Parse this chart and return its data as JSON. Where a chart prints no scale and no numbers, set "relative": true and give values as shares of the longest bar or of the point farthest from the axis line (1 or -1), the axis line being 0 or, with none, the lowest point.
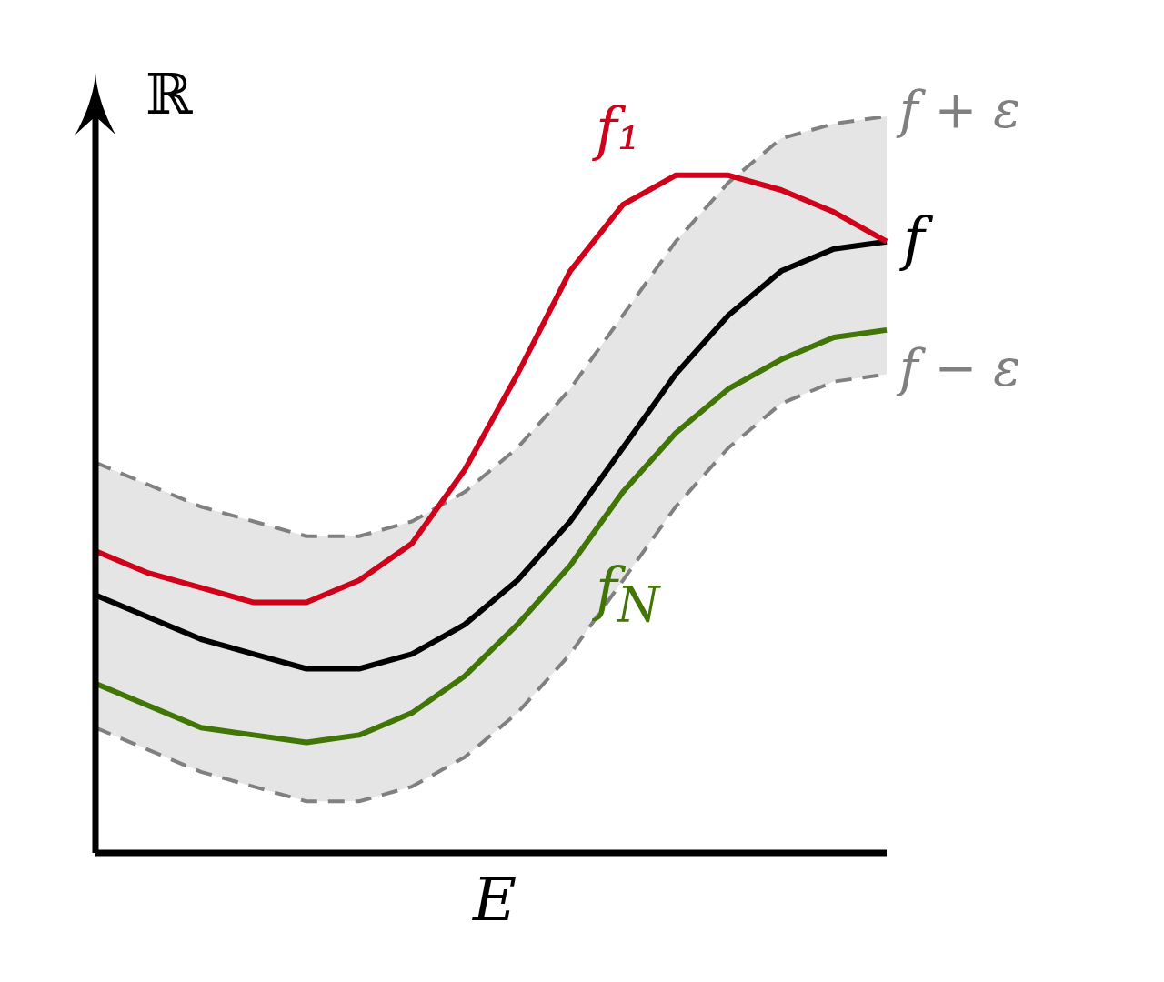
{
  "chart_data": {
    "type": "line",
    "relative": true,
    "xlabel": "E",
    "ylabel": "ℝ",
    "categories": [
      null,
      null,
      null,
      null,
      null,
      null,
      null,
      null,
      null,
      null,
      null,
      null,
      null,
      null,
      null,
      null
    ],
    "series": [
      {
        "name": "f + ε",
        "color": "#808080",
        "line_style": "dashed",
        "values": [
          0.53,
          0.5,
          0.47,
          0.45,
          0.43,
          0.43,
          0.45,
          0.49,
          0.55,
          0.63,
          0.73,
          0.83,
          0.91,
          0.97,
          0.99,
          1.0
        ]
      },
      {
        "name": "f − ε",
        "color": "#808080",
        "line_style": "dashed",
        "values": [
          0.17,
          0.14,
          0.11,
          0.09,
          0.07,
          0.07,
          0.09,
          0.13,
          0.19,
          0.27,
          0.37,
          0.47,
          0.55,
          0.61,
          0.64,
          0.65
        ]
      },
      {
        "name": "f",
        "color": "#000000",
        "values": [
          0.35,
          0.32,
          0.29,
          0.27,
          0.25,
          0.25,
          0.27,
          0.31,
          0.37,
          0.45,
          0.55,
          0.65,
          0.73,
          0.79,
          0.82,
          0.83
        ],
        "upper": [
          0.53,
          0.5,
          0.47,
          0.45,
          0.43,
          0.43,
          0.45,
          0.49,
          0.55,
          0.63,
          0.73,
          0.83,
          0.91,
          0.97,
          0.99,
          1.0
        ],
        "lower": [
          0.17,
          0.14,
          0.11,
          0.09,
          0.07,
          0.07,
          0.09,
          0.13,
          0.19,
          0.27,
          0.37,
          0.47,
          0.55,
          0.61,
          0.64,
          0.65
        ]
      },
      {
        "name": "f₁",
        "color": "#d0021b",
        "values": [
          0.41,
          0.38,
          0.36,
          0.34,
          0.34,
          0.37,
          0.42,
          0.52,
          0.65,
          0.79,
          0.88,
          0.92,
          0.92,
          0.9,
          0.87,
          0.83
        ]
      },
      {
        "name": "f$_{N}$",
        "color": "#417505",
        "values": [
          0.23,
          0.2,
          0.17,
          0.16,
          0.15,
          0.16,
          0.19,
          0.24,
          0.31,
          0.39,
          0.49,
          0.57,
          0.63,
          0.67,
          0.7,
          0.71
        ]
      }
    ]
  }
}
